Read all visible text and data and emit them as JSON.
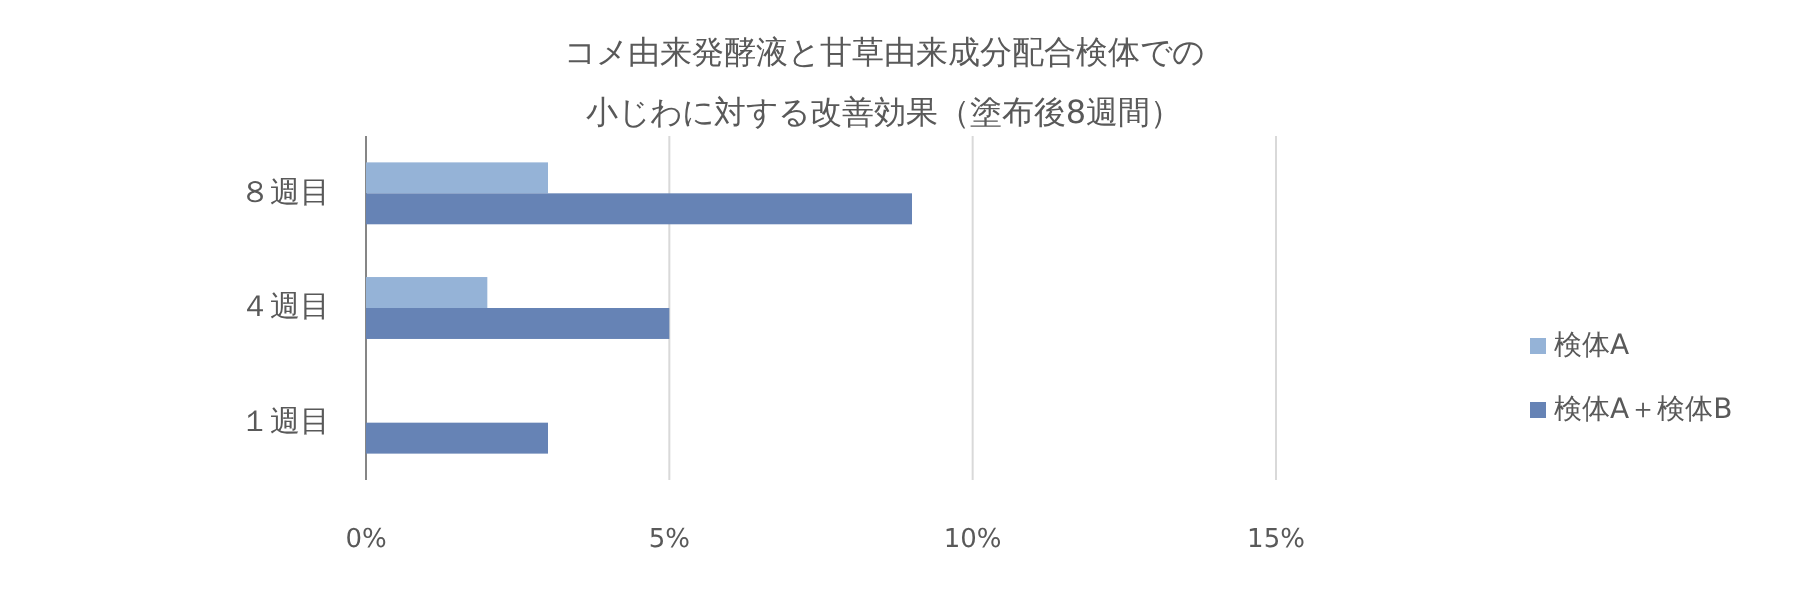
{
  "chart_data": {
    "type": "bar",
    "orientation": "horizontal",
    "title": "コメ由来発酵液と甘草由来成分配合検体での",
    "subtitle": "小じわに対する改善効果（塗布後8週間）",
    "categories": [
      "８週目",
      "４週目",
      "１週目"
    ],
    "series": [
      {
        "name": "検体A",
        "color": "#95b3d7",
        "values": [
          3,
          2,
          null
        ]
      },
      {
        "name": "検体A＋検体B",
        "color": "#6683b5",
        "values": [
          9,
          5,
          3
        ]
      }
    ],
    "xlim": [
      0,
      15
    ],
    "xticks": [
      {
        "value": 0,
        "label": "0%"
      },
      {
        "value": 5,
        "label": "5%"
      },
      {
        "value": 10,
        "label": "10%"
      },
      {
        "value": 15,
        "label": "15%"
      }
    ],
    "grid": "x",
    "legend": "right"
  }
}
